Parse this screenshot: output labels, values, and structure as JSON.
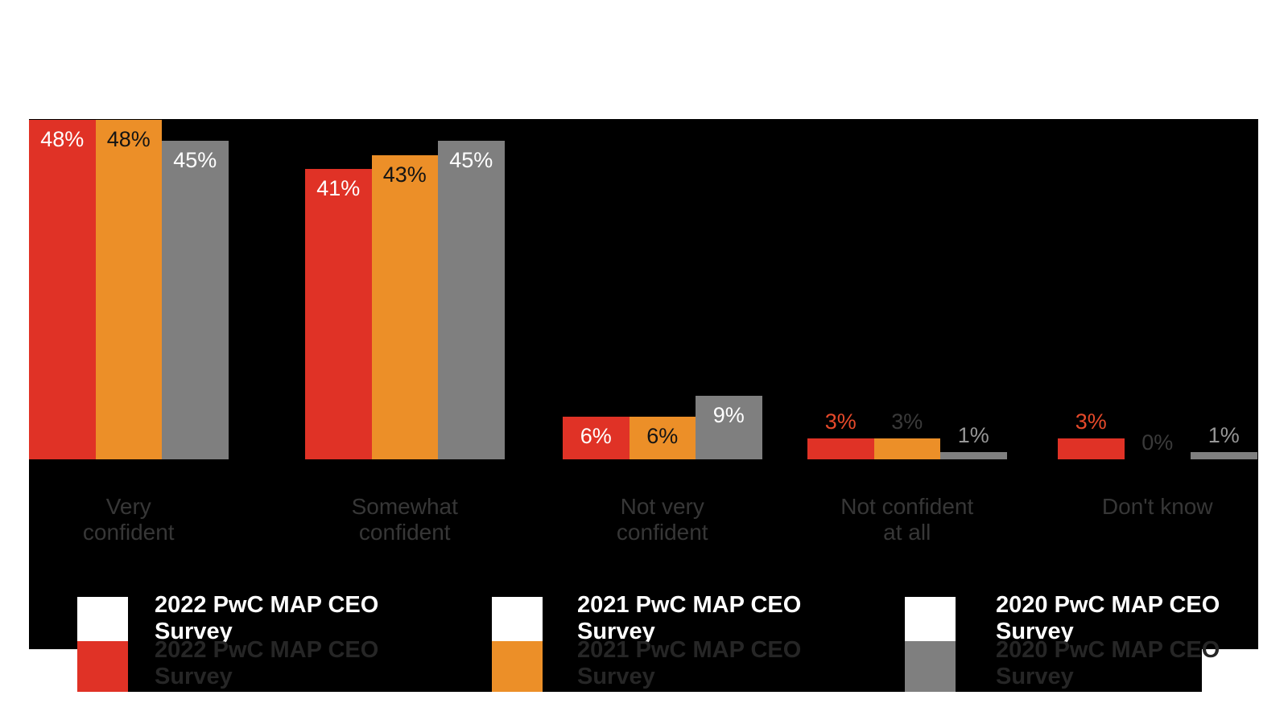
{
  "page": {
    "background": "#ffffff",
    "plot_background": "#000000"
  },
  "chart_data": {
    "type": "bar",
    "title": "",
    "categories": [
      "Very confident",
      "Somewhat confident",
      "Not very confident",
      "Not confident at all",
      "Don't know"
    ],
    "category_lines": [
      [
        "Very",
        "confident"
      ],
      [
        "Somewhat",
        "confident"
      ],
      [
        "Not very",
        "confident"
      ],
      [
        "Not confident",
        "at all"
      ],
      [
        "Don't know"
      ]
    ],
    "series": [
      {
        "name": "2022 PwC MAP CEO Survey",
        "color": "#e03226",
        "values": [
          48,
          41,
          6,
          3,
          3
        ]
      },
      {
        "name": "2021 PwC MAP CEO Survey",
        "color": "#ec8f28",
        "values": [
          48,
          43,
          6,
          3,
          0
        ]
      },
      {
        "name": "2020 PwC MAP CEO Survey",
        "color": "#7f7f7f",
        "values": [
          45,
          45,
          9,
          1,
          1
        ]
      }
    ],
    "value_label_format": "{v}%",
    "value_labels": [
      [
        "48%",
        "41%",
        "6%",
        "3%",
        "3%"
      ],
      [
        "48%",
        "43%",
        "6%",
        "3%",
        "0%"
      ],
      [
        "45%",
        "45%",
        "9%",
        "1%",
        "1%"
      ]
    ],
    "ylim": [
      0,
      50
    ],
    "grid": false,
    "axes_visible": false,
    "legend_position": "bottom",
    "inside_label_colors": [
      "#ffffff",
      "#141414",
      "#ffffff"
    ],
    "outside_label_colors": [
      "#e5492a",
      "#3a3a3a",
      "#969696"
    ],
    "inside_label_min_value": 6,
    "category_label_color": "#373737",
    "legend": {
      "entries": [
        {
          "line1": "2022 PwC MAP CEO",
          "line2": "Survey",
          "color": "#e03226"
        },
        {
          "line1": "2021 PwC MAP CEO",
          "line2": "Survey",
          "color": "#ec8f28"
        },
        {
          "line1": "2020 PwC MAP CEO",
          "line2": "Survey",
          "color": "#7f7f7f"
        }
      ],
      "row1_text_color": "#ffffff",
      "row2_text_color": "#262626",
      "row1_swatch_color": "#ffffff"
    }
  }
}
